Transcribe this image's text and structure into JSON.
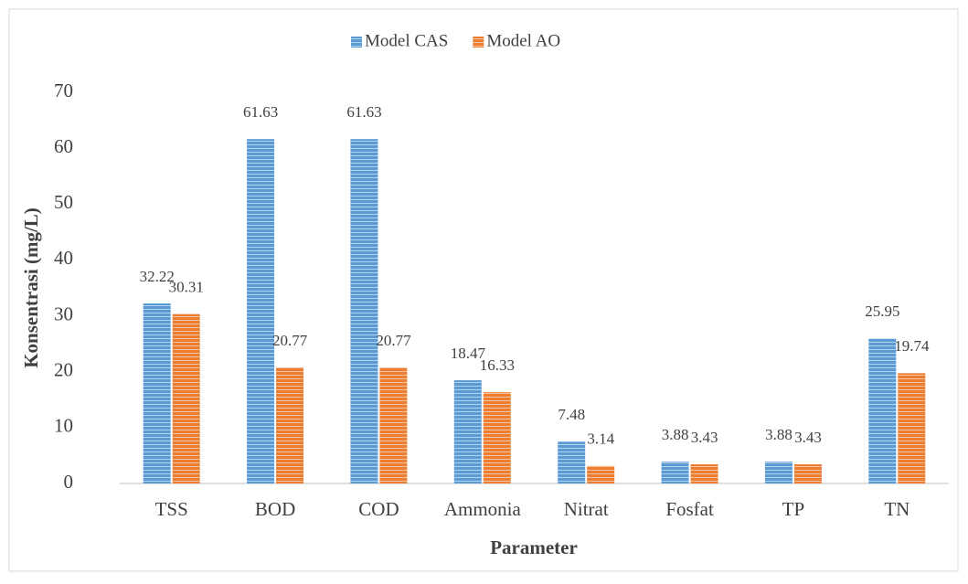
{
  "chart_data": {
    "type": "bar",
    "x_label": "Parameter",
    "y_label": "Konsentrasi (mg/L)",
    "categories": [
      "TSS",
      "BOD",
      "COD",
      "Ammonia",
      "Nitrat",
      "Fosfat",
      "TP",
      "TN"
    ],
    "series": [
      {
        "name": "Model CAS",
        "color": "#5b9bd5",
        "values": [
          32.22,
          61.63,
          61.63,
          18.47,
          7.48,
          3.88,
          3.88,
          25.95
        ]
      },
      {
        "name": "Model AO",
        "color": "#ed7d31",
        "values": [
          30.31,
          20.77,
          20.77,
          16.33,
          3.14,
          3.43,
          3.43,
          19.74
        ]
      }
    ],
    "ylim": [
      0,
      70
    ],
    "yticks": [
      0,
      10,
      20,
      30,
      40,
      50,
      60,
      70
    ],
    "grid": false,
    "legend": "top",
    "data_labels": true
  }
}
